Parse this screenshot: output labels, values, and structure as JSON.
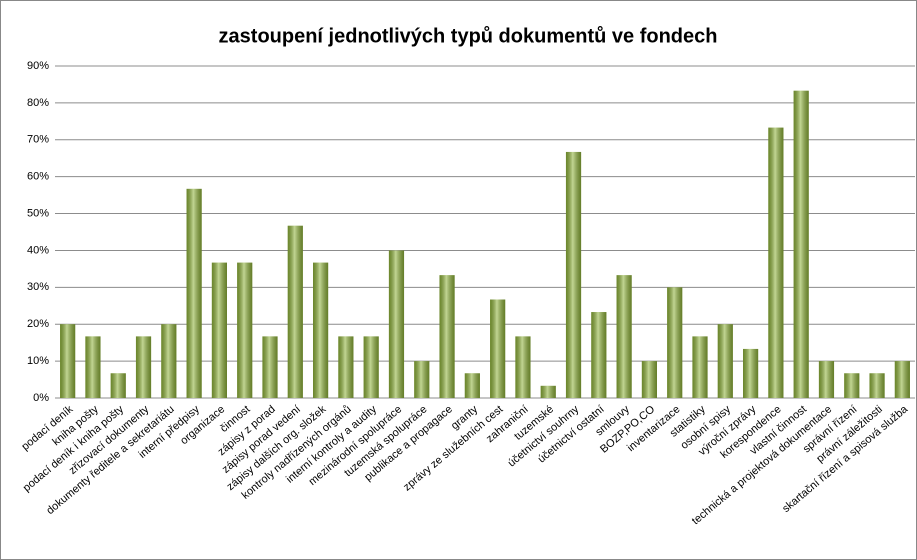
{
  "chart_data": {
    "type": "bar",
    "title": "zastoupení jednotlivých typů dokumentů ve fondech",
    "categories": [
      "podací deník",
      "kniha pošty",
      "podací deník i kniha pošty",
      "zřizovací dokumenty",
      "dokumenty ředitele a sekretariátu",
      "interní předpisy",
      "organizace",
      "činnost",
      "zápisy z porad",
      "zápisy porad vedení",
      "zápisy dalších org. složek",
      "kontroly nadřízených orgánů",
      "interní kontroly a audity",
      "mezinárodní spolupráce",
      "tuzemská spolupráce",
      "publikace a propagace",
      "granty",
      "zprávy ze služebních cest",
      "zahraniční",
      "tuzemské",
      "účetnictví souhrny",
      "účetnictví ostatní",
      "smlouvy",
      "BOZP,PO,CO",
      "inventarizace",
      "statistiky",
      "osobní spisy",
      "výroční zprávy",
      "korespondence",
      "vlastní činnost",
      "technická a projektová dokumentace",
      "správní řízení",
      "právní záležitosti",
      "skartační řízení a spisová služba"
    ],
    "values": [
      20,
      16.7,
      6.7,
      16.7,
      20,
      56.7,
      36.7,
      36.7,
      16.7,
      46.7,
      36.7,
      16.7,
      16.7,
      40,
      10,
      33.3,
      6.7,
      26.7,
      16.7,
      3.3,
      66.7,
      23.3,
      33.3,
      10,
      30,
      16.7,
      20,
      13.3,
      73.3,
      83.3,
      10,
      6.7,
      6.7,
      10
    ],
    "color": "#8fb33a",
    "ylim": [
      0,
      90
    ],
    "yticks": [
      {
        "value": 0,
        "label": "0%"
      },
      {
        "value": 10,
        "label": "10%"
      },
      {
        "value": 20,
        "label": "20%"
      },
      {
        "value": 30,
        "label": "30%"
      },
      {
        "value": 40,
        "label": "40%"
      },
      {
        "value": 50,
        "label": "50%"
      },
      {
        "value": 60,
        "label": "60%"
      },
      {
        "value": 70,
        "label": "70%"
      },
      {
        "value": 80,
        "label": "80%"
      },
      {
        "value": 90,
        "label": "90%"
      }
    ],
    "grid": true
  }
}
